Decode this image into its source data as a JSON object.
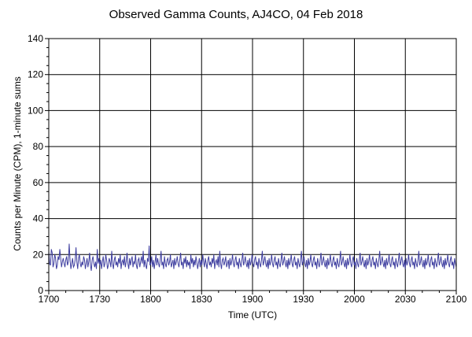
{
  "chart_data": {
    "type": "line",
    "title": "Observed Gamma Counts, AJ4CO, 04 Feb 2018",
    "xlabel": "Time (UTC)",
    "ylabel": "Counts per Minute (CPM), 1-minute sums",
    "x_ticks": [
      "1700",
      "1730",
      "1800",
      "1830",
      "1900",
      "1930",
      "2000",
      "2030",
      "2100"
    ],
    "y_ticks": [
      "0",
      "20",
      "40",
      "60",
      "80",
      "100",
      "120",
      "140"
    ],
    "xlim": [
      "1700",
      "2100"
    ],
    "ylim": [
      0,
      140
    ],
    "grid": true,
    "series": [
      {
        "color": "#3f3fa0",
        "x_start": "1700",
        "x_step_minutes": 1,
        "values": [
          22,
          15,
          14,
          23,
          21,
          13,
          15,
          20,
          18,
          12,
          14,
          19,
          17,
          23,
          18,
          13,
          16,
          18,
          15,
          13,
          17,
          19,
          14,
          16,
          26,
          17,
          12,
          15,
          18,
          13,
          14,
          17,
          24,
          16,
          12,
          18,
          20,
          15,
          13,
          16,
          14,
          19,
          17,
          12,
          15,
          18,
          13,
          16,
          21,
          14,
          11,
          17,
          19,
          15,
          13,
          16,
          12,
          23,
          15,
          18,
          14,
          17,
          12,
          16,
          19,
          13,
          15,
          20,
          17,
          12,
          14,
          18,
          16,
          13,
          22,
          15,
          12,
          17,
          19,
          14,
          16,
          13,
          18,
          15,
          20,
          12,
          16,
          17,
          14,
          19,
          13,
          16,
          21,
          15,
          12,
          18,
          14,
          17,
          19,
          13,
          16,
          15,
          20,
          14,
          12,
          17,
          18,
          13,
          16,
          19,
          15,
          22,
          13,
          17,
          14,
          12,
          18,
          16,
          25,
          14,
          15,
          19,
          13,
          17,
          12,
          16,
          20,
          14,
          18,
          15,
          13,
          17,
          22,
          14,
          16,
          12,
          19,
          15,
          13,
          17,
          18,
          14,
          16,
          20,
          13,
          15,
          17,
          12,
          18,
          14,
          16,
          19,
          15,
          13,
          17,
          21,
          14,
          16,
          12,
          18,
          15,
          19,
          13,
          17,
          14,
          16,
          12,
          20,
          15,
          18,
          13,
          17,
          14,
          19,
          16,
          12,
          15,
          18,
          13,
          17,
          14,
          20,
          16,
          13,
          18,
          15,
          12,
          17,
          19,
          14,
          16,
          13,
          18,
          15,
          20,
          12,
          16,
          17,
          14,
          19,
          13,
          22,
          15,
          12,
          17,
          18,
          14,
          16,
          19,
          13,
          15,
          17,
          12,
          18,
          14,
          16,
          20,
          15,
          13,
          17,
          19,
          14,
          16,
          12,
          18,
          15,
          13,
          17,
          21,
          14,
          16,
          19,
          15,
          13,
          17,
          12,
          18,
          14,
          16,
          20,
          15,
          13,
          17,
          19,
          14,
          16,
          12,
          18,
          15,
          13,
          17,
          22,
          14,
          16,
          19,
          15,
          13,
          17,
          12,
          18,
          14,
          16,
          20,
          15,
          13,
          17,
          19,
          14,
          16,
          12,
          18,
          15,
          13,
          17,
          21,
          14,
          16,
          19,
          15,
          13,
          17,
          12,
          18,
          14,
          16,
          20,
          15,
          13,
          17,
          19,
          14,
          16,
          12,
          18,
          15,
          13,
          17,
          22,
          14,
          16,
          19,
          15,
          13,
          17,
          12,
          18,
          14,
          16,
          20,
          15,
          13,
          17,
          19,
          14,
          16,
          12,
          18,
          15,
          13,
          17,
          21,
          14,
          16,
          19,
          15,
          13,
          17,
          12,
          18,
          14,
          16,
          20,
          15,
          13,
          17,
          19,
          14,
          16,
          12,
          18,
          15,
          13,
          17,
          22,
          14,
          16,
          19,
          15,
          13,
          17,
          12,
          18,
          14,
          16,
          20,
          15,
          13,
          17,
          19,
          14,
          16,
          12,
          18,
          15,
          13,
          17,
          21,
          14,
          16,
          19,
          15,
          13,
          17,
          12,
          18,
          14,
          16,
          20,
          15,
          13,
          17,
          19,
          14,
          16,
          12,
          18,
          15,
          13,
          17,
          22,
          14,
          16,
          19,
          15,
          13,
          17,
          12,
          18,
          14,
          16,
          20,
          15,
          13,
          17,
          19,
          14,
          16,
          12,
          18,
          15,
          13,
          17,
          21,
          14,
          16,
          19,
          15,
          13,
          17,
          12,
          18,
          14,
          16,
          20,
          15,
          13,
          17,
          19,
          14,
          16,
          12,
          18,
          15,
          13,
          17,
          22,
          14,
          16,
          19,
          15,
          13,
          17,
          12,
          18,
          14,
          16,
          20,
          15,
          13,
          17,
          19,
          14,
          16,
          12,
          18,
          15,
          13,
          17,
          21,
          14,
          16,
          19,
          15,
          13,
          17,
          12,
          18,
          14,
          16,
          20,
          15,
          13,
          17,
          19,
          14,
          16,
          12,
          18,
          15,
          13
        ]
      }
    ]
  }
}
